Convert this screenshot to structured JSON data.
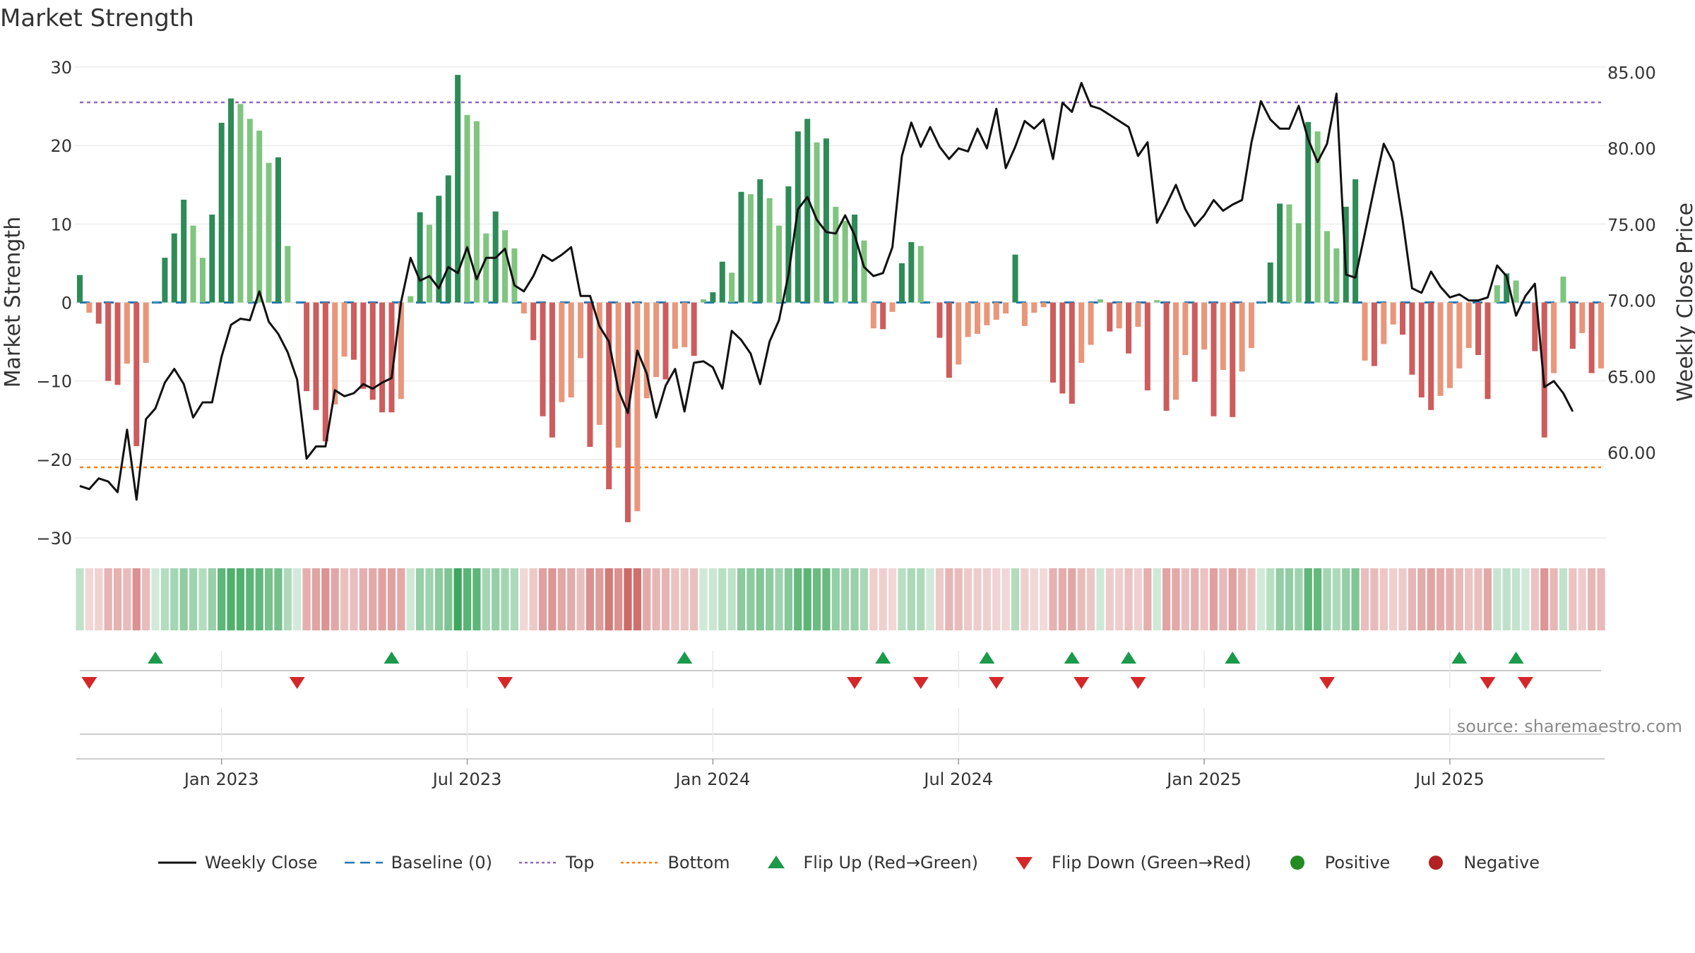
{
  "chart_data": {
    "type": "bar+line",
    "title": "Market Strength",
    "source": "source: sharemaestro.com",
    "ylabel_left": "Market Strength",
    "ylabel_right": "Weekly Close Price",
    "ylim_left": [
      -30,
      30
    ],
    "yticks_left": [
      30,
      20,
      10,
      0,
      -10,
      -20,
      -30
    ],
    "ytick_labels_left": [
      "30",
      "20",
      "10",
      "0",
      "−10",
      "−20",
      "−30"
    ],
    "ylim_right": [
      55.5,
      85.3
    ],
    "yticks_right": [
      85,
      80,
      75,
      70,
      65,
      60
    ],
    "ytick_labels_right": [
      "85.00",
      "80.00",
      "75.00",
      "70.00",
      "65.00",
      "60.00"
    ],
    "x_tick_labels": [
      "Jan 2023",
      "Jul 2023",
      "Jan 2024",
      "Jul 2024",
      "Jan 2025",
      "Jul 2025"
    ],
    "x_tick_weeks": [
      15,
      41,
      67,
      93,
      119,
      145
    ],
    "top_level": 25.5,
    "bottom_level": -21,
    "baseline": 0,
    "strength": [
      3.5,
      -1.3,
      -2.7,
      -10,
      -10.5,
      -7.8,
      -18.3,
      -7.7,
      0,
      5.7,
      8.8,
      13.1,
      9.8,
      5.7,
      11.2,
      22.9,
      26,
      25.3,
      23.4,
      21.9,
      17.8,
      18.5,
      7.2,
      0,
      -11.3,
      -13.7,
      -17.7,
      -13,
      -6.9,
      -7.3,
      -11,
      -12.4,
      -14,
      -14,
      -12.3,
      0.8,
      11.5,
      9.9,
      13.6,
      16.2,
      29,
      23.9,
      23.1,
      8.8,
      11.6,
      9.2,
      6.9,
      -1.4,
      -4.8,
      -14.5,
      -17.2,
      -12.7,
      -12.1,
      -7.1,
      -18.4,
      -15.6,
      -23.8,
      -18.5,
      -28,
      -26.6,
      -12.2,
      -9.5,
      -9.8,
      -5.9,
      -5.7,
      -6.8,
      0.4,
      1.3,
      5.2,
      3.8,
      14.1,
      13.8,
      15.7,
      13.3,
      9.8,
      14.8,
      21.8,
      23.4,
      20.4,
      20.9,
      12.2,
      10.4,
      11.2,
      7.9,
      -3.3,
      -3.4,
      -1.2,
      5,
      7.7,
      7.2,
      0,
      -4.5,
      -9.6,
      -7.9,
      -4.4,
      -4,
      -2.9,
      -2.2,
      -1.4,
      6.1,
      -3,
      -1.3,
      -0.6,
      -10.2,
      -11.6,
      -12.9,
      -7.7,
      -5.4,
      0.4,
      -3.7,
      -3.3,
      -6.5,
      -3.1,
      -11.2,
      0.3,
      -13.8,
      -12.4,
      -6.7,
      -10.1,
      -6,
      -14.5,
      -8.6,
      -14.6,
      -8.8,
      -5.8,
      0,
      5.1,
      12.6,
      12.5,
      10.1,
      23,
      21.8,
      9.1,
      6.9,
      12.2,
      15.7,
      -7.4,
      -8.1,
      -5.3,
      -2.8,
      -4.1,
      -9.2,
      -12.1,
      -13.7,
      -11.9,
      -10.9,
      -8.4,
      -5.8,
      -6.7,
      -12.3,
      2.2,
      3.7,
      2.8,
      0,
      -6.2,
      -17.2,
      -9,
      3.3,
      -5.9,
      -3.9,
      -9,
      -8.4
    ],
    "close": [
      57.8,
      57.6,
      58.3,
      58.1,
      57.4,
      61.5,
      56.9,
      62.2,
      62.9,
      64.6,
      65.5,
      64.5,
      62.3,
      63.3,
      63.3,
      66.3,
      68.4,
      68.8,
      68.7,
      70.6,
      68.6,
      67.8,
      66.6,
      64.8,
      59.6,
      60.4,
      60.4,
      64.1,
      63.7,
      63.9,
      64.5,
      64.2,
      64.6,
      64.9,
      69.9,
      72.8,
      71.3,
      71.6,
      70.8,
      72.2,
      71.8,
      73.5,
      71.4,
      72.8,
      72.8,
      73.4,
      71,
      70.6,
      71.6,
      73.0,
      72.6,
      73.0,
      73.5,
      70.3,
      70.3,
      68.3,
      67.3,
      64.1,
      62.6,
      66.7,
      65.2,
      62.3,
      64.4,
      65.5,
      62.7,
      65.9,
      66.0,
      65.6,
      64.2,
      68.0,
      67.4,
      66.5,
      64.5,
      67.3,
      68.7,
      71.7,
      76.0,
      76.8,
      75.3,
      74.5,
      74.4,
      75.6,
      74.3,
      72.2,
      71.6,
      71.8,
      73.5,
      79.5,
      81.7,
      80.1,
      81.4,
      80.1,
      79.3,
      80.0,
      79.8,
      81.3,
      80.0,
      82.6,
      78.7,
      80.1,
      81.8,
      81.3,
      81.9,
      79.3,
      83.0,
      82.4,
      84.3,
      82.8,
      82.6,
      82.2,
      81.8,
      81.4,
      79.5,
      80.4,
      75.1,
      76.3,
      77.6,
      76.0,
      74.9,
      75.6,
      76.6,
      75.9,
      76.3,
      76.6,
      80.4,
      83.1,
      81.9,
      81.3,
      81.3,
      82.8,
      80.6,
      79.1,
      80.3,
      83.6,
      71.7,
      71.5,
      74.4,
      77.4,
      80.3,
      79.1,
      75.3,
      70.8,
      70.5,
      71.9,
      70.9,
      70.2,
      70.4,
      70.0,
      70.0,
      70.2,
      72.3,
      71.6,
      69.0,
      70.3,
      71.1,
      64.3,
      64.7,
      63.9,
      62.7
    ],
    "flip_up_weeks": [
      8,
      33,
      64,
      85,
      96,
      105,
      111,
      122,
      146,
      152
    ],
    "flip_down_weeks": [
      1,
      23,
      45,
      82,
      89,
      97,
      106,
      112,
      132,
      149,
      153
    ],
    "legend": [
      "Weekly Close",
      "Baseline (0)",
      "Top",
      "Bottom",
      "Flip Up (Red→Green)",
      "Flip Down (Green→Red)",
      "Positive",
      "Negative"
    ],
    "colors": {
      "pos_strong": "#2e8b57",
      "pos_light": "#7fc47f",
      "neg_strong": "#cd5c5c",
      "neg_light": "#e9967a",
      "close_line": "#111111",
      "baseline": "#1f77b4",
      "top": "#9467bd",
      "bottom": "#ff7f0e",
      "flip_up": "#1a9a4a",
      "flip_down": "#d62728",
      "positive_dot": "#228b22",
      "negative_dot": "#b22222"
    }
  }
}
